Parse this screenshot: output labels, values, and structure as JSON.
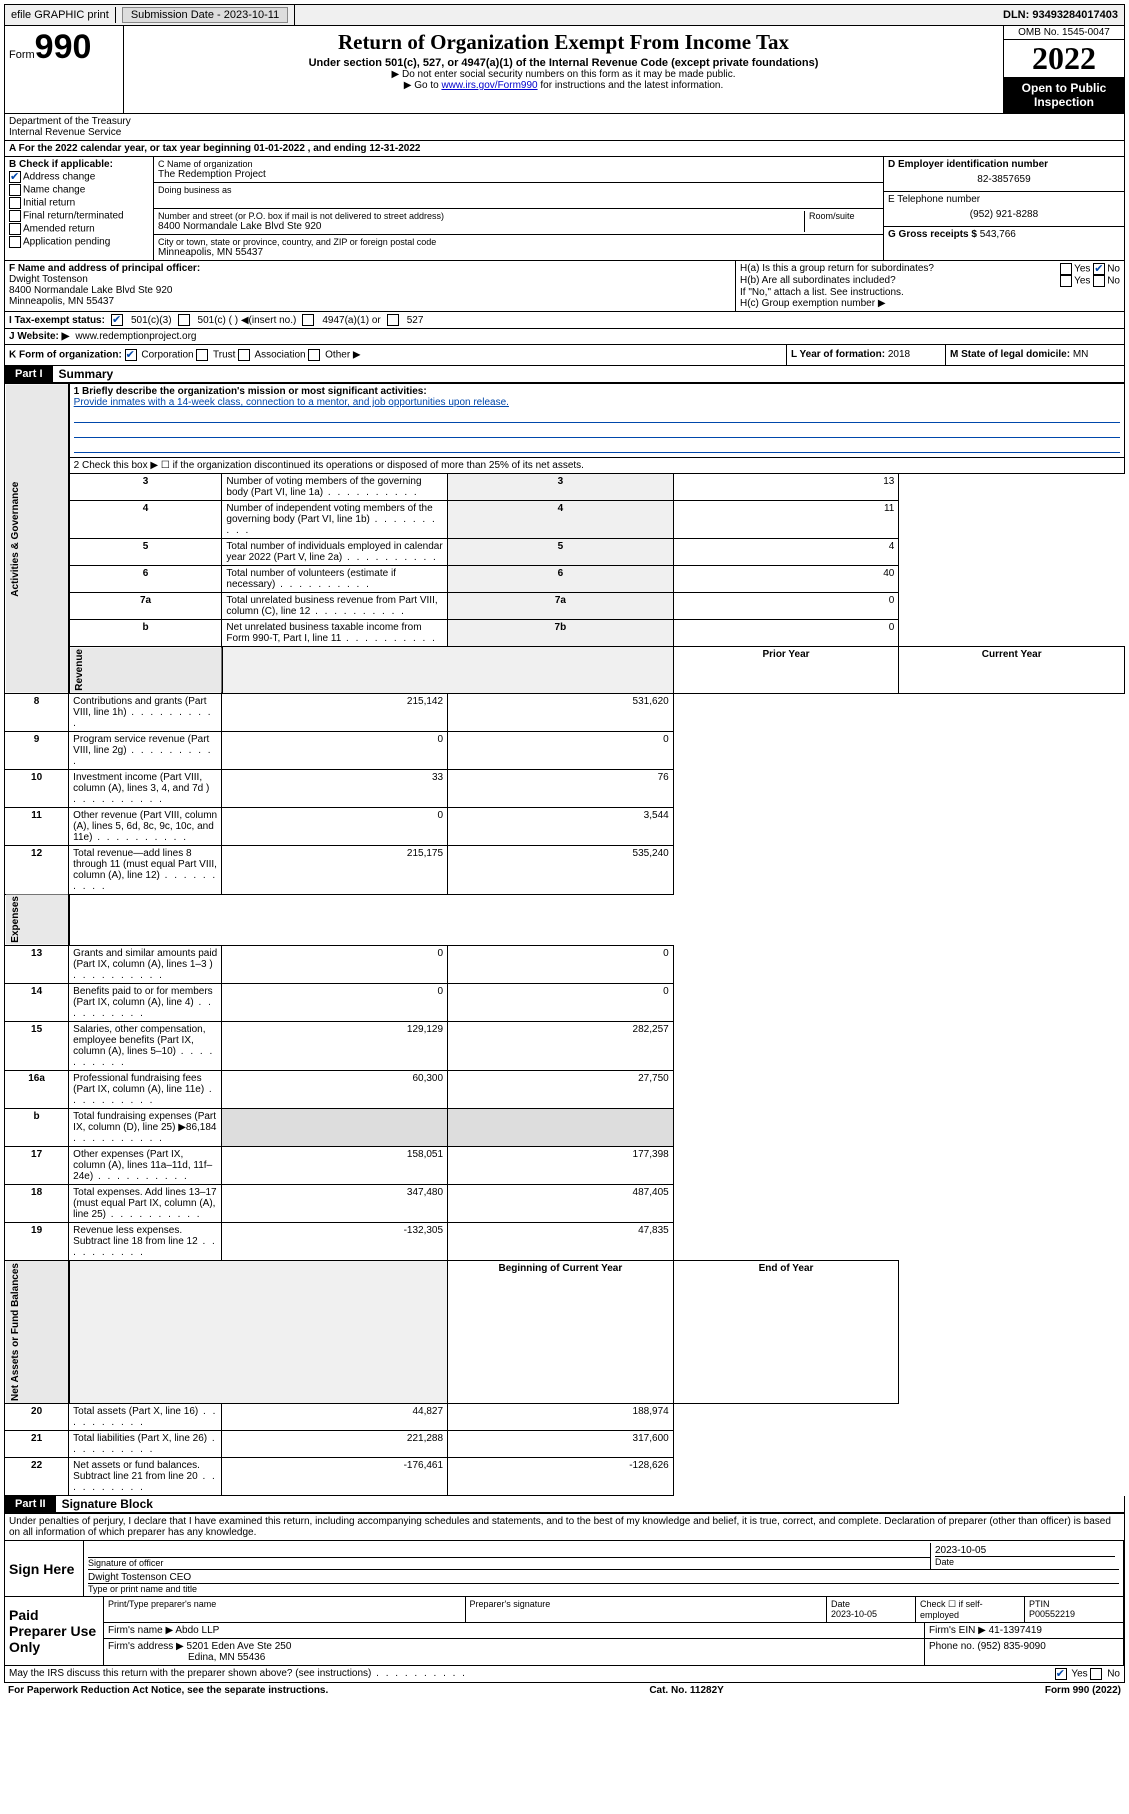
{
  "topbar": {
    "efile": "efile GRAPHIC print",
    "submission_label": "Submission Date - ",
    "submission_date": "2023-10-11",
    "dln_label": "DLN: ",
    "dln": "93493284017403"
  },
  "header": {
    "form_label": "Form",
    "form_number": "990",
    "title": "Return of Organization Exempt From Income Tax",
    "subtitle": "Under section 501(c), 527, or 4947(a)(1) of the Internal Revenue Code (except private foundations)",
    "note1": "▶ Do not enter social security numbers on this form as it may be made public.",
    "note2_pre": "▶ Go to ",
    "note2_link": "www.irs.gov/Form990",
    "note2_post": " for instructions and the latest information.",
    "omb": "OMB No. 1545-0047",
    "year": "2022",
    "inspection": "Open to Public Inspection",
    "dept": "Department of the Treasury\nInternal Revenue Service"
  },
  "section_a": "A For the 2022 calendar year, or tax year beginning 01-01-2022   , and ending 12-31-2022",
  "box_b": {
    "label": "B Check if applicable:",
    "items": [
      "Address change",
      "Name change",
      "Initial return",
      "Final return/terminated",
      "Amended return",
      "Application pending"
    ],
    "checked_index": 0
  },
  "box_c": {
    "name_label": "C Name of organization",
    "name": "The Redemption Project",
    "dba_label": "Doing business as",
    "addr_label": "Number and street (or P.O. box if mail is not delivered to street address)",
    "room_label": "Room/suite",
    "addr": "8400 Normandale Lake Blvd Ste 920",
    "city_label": "City or town, state or province, country, and ZIP or foreign postal code",
    "city": "Minneapolis, MN  55437"
  },
  "box_d": {
    "label": "D Employer identification number",
    "ein": "82-3857659"
  },
  "box_e": {
    "label": "E Telephone number",
    "phone": "(952) 921-8288"
  },
  "box_g": {
    "label": "G Gross receipts $ ",
    "amount": "543,766"
  },
  "box_f": {
    "label": "F  Name and address of principal officer:",
    "name": "Dwight Tostenson",
    "addr1": "8400 Normandale Lake Blvd Ste 920",
    "addr2": "Minneapolis, MN  55437"
  },
  "box_h": {
    "ha": "H(a)  Is this a group return for subordinates?",
    "hb": "H(b)  Are all subordinates included?",
    "hb_note": "If \"No,\" attach a list. See instructions.",
    "hc": "H(c)  Group exemption number ▶",
    "yes": "Yes",
    "no": "No"
  },
  "row_i": {
    "label": "I    Tax-exempt status:",
    "opt1": "501(c)(3)",
    "opt2": "501(c) (  ) ◀(insert no.)",
    "opt3": "4947(a)(1) or",
    "opt4": "527"
  },
  "row_j": {
    "label": "J   Website: ▶ ",
    "site": "www.redemptionproject.org"
  },
  "row_k": {
    "label": "K Form of organization:",
    "opts": [
      "Corporation",
      "Trust",
      "Association",
      "Other ▶"
    ],
    "l_label": "L Year of formation: ",
    "l_val": "2018",
    "m_label": "M State of legal domicile: ",
    "m_val": "MN"
  },
  "part1": {
    "header": "Part I",
    "title": "Summary",
    "line1_label": "1   Briefly describe the organization's mission or most significant activities:",
    "mission": "Provide inmates with a 14-week class, connection to a mentor, and job opportunities upon release.",
    "line2": "2    Check this box ▶ ☐  if the organization discontinued its operations or disposed of more than 25% of its net assets.",
    "sections": {
      "governance": "Activities & Governance",
      "revenue": "Revenue",
      "expenses": "Expenses",
      "netassets": "Net Assets or Fund Balances"
    },
    "gov_rows": [
      {
        "n": "3",
        "text": "Number of voting members of the governing body (Part VI, line 1a)",
        "key": "3",
        "val": "13"
      },
      {
        "n": "4",
        "text": "Number of independent voting members of the governing body (Part VI, line 1b)",
        "key": "4",
        "val": "11"
      },
      {
        "n": "5",
        "text": "Total number of individuals employed in calendar year 2022 (Part V, line 2a)",
        "key": "5",
        "val": "4"
      },
      {
        "n": "6",
        "text": "Total number of volunteers (estimate if necessary)",
        "key": "6",
        "val": "40"
      },
      {
        "n": "7a",
        "text": "Total unrelated business revenue from Part VIII, column (C), line 12",
        "key": "7a",
        "val": "0"
      },
      {
        "n": "b",
        "text": "Net unrelated business taxable income from Form 990-T, Part I, line 11",
        "key": "7b",
        "val": "0"
      }
    ],
    "col_headers": {
      "prior": "Prior Year",
      "current": "Current Year",
      "begin": "Beginning of Current Year",
      "end": "End of Year"
    },
    "rev_rows": [
      {
        "n": "8",
        "text": "Contributions and grants (Part VIII, line 1h)",
        "prior": "215,142",
        "curr": "531,620"
      },
      {
        "n": "9",
        "text": "Program service revenue (Part VIII, line 2g)",
        "prior": "0",
        "curr": "0"
      },
      {
        "n": "10",
        "text": "Investment income (Part VIII, column (A), lines 3, 4, and 7d )",
        "prior": "33",
        "curr": "76"
      },
      {
        "n": "11",
        "text": "Other revenue (Part VIII, column (A), lines 5, 6d, 8c, 9c, 10c, and 11e)",
        "prior": "0",
        "curr": "3,544"
      },
      {
        "n": "12",
        "text": "Total revenue—add lines 8 through 11 (must equal Part VIII, column (A), line 12)",
        "prior": "215,175",
        "curr": "535,240"
      }
    ],
    "exp_rows": [
      {
        "n": "13",
        "text": "Grants and similar amounts paid (Part IX, column (A), lines 1–3 )",
        "prior": "0",
        "curr": "0"
      },
      {
        "n": "14",
        "text": "Benefits paid to or for members (Part IX, column (A), line 4)",
        "prior": "0",
        "curr": "0"
      },
      {
        "n": "15",
        "text": "Salaries, other compensation, employee benefits (Part IX, column (A), lines 5–10)",
        "prior": "129,129",
        "curr": "282,257"
      },
      {
        "n": "16a",
        "text": "Professional fundraising fees (Part IX, column (A), line 11e)",
        "prior": "60,300",
        "curr": "27,750"
      },
      {
        "n": "b",
        "text": "Total fundraising expenses (Part IX, column (D), line 25) ▶86,184",
        "prior": "",
        "curr": ""
      },
      {
        "n": "17",
        "text": "Other expenses (Part IX, column (A), lines 11a–11d, 11f–24e)",
        "prior": "158,051",
        "curr": "177,398"
      },
      {
        "n": "18",
        "text": "Total expenses. Add lines 13–17 (must equal Part IX, column (A), line 25)",
        "prior": "347,480",
        "curr": "487,405"
      },
      {
        "n": "19",
        "text": "Revenue less expenses. Subtract line 18 from line 12",
        "prior": "-132,305",
        "curr": "47,835"
      }
    ],
    "net_rows": [
      {
        "n": "20",
        "text": "Total assets (Part X, line 16)",
        "prior": "44,827",
        "curr": "188,974"
      },
      {
        "n": "21",
        "text": "Total liabilities (Part X, line 26)",
        "prior": "221,288",
        "curr": "317,600"
      },
      {
        "n": "22",
        "text": "Net assets or fund balances. Subtract line 21 from line 20",
        "prior": "-176,461",
        "curr": "-128,626"
      }
    ]
  },
  "part2": {
    "header": "Part II",
    "title": "Signature Block",
    "declaration": "Under penalties of perjury, I declare that I have examined this return, including accompanying schedules and statements, and to the best of my knowledge and belief, it is true, correct, and complete. Declaration of preparer (other than officer) is based on all information of which preparer has any knowledge.",
    "sign_here": "Sign Here",
    "sig_officer": "Signature of officer",
    "sig_date": "Date",
    "sig_date_val": "2023-10-05",
    "officer_name": "Dwight Tostenson CEO",
    "type_name": "Type or print name and title",
    "paid": "Paid Preparer Use Only",
    "prep_name_label": "Print/Type preparer's name",
    "prep_sig_label": "Preparer's signature",
    "prep_date_label": "Date",
    "prep_date": "2023-10-05",
    "check_label": "Check ☐ if self-employed",
    "ptin_label": "PTIN",
    "ptin": "P00552219",
    "firm_name_label": "Firm's name    ▶ ",
    "firm_name": "Abdo LLP",
    "firm_ein_label": "Firm's EIN ▶ ",
    "firm_ein": "41-1397419",
    "firm_addr_label": "Firm's address ▶ ",
    "firm_addr1": "5201 Eden Ave Ste 250",
    "firm_addr2": "Edina, MN  55436",
    "firm_phone_label": "Phone no. ",
    "firm_phone": "(952) 835-9090",
    "discuss": "May the IRS discuss this return with the preparer shown above? (see instructions)",
    "yes": "Yes",
    "no": "No"
  },
  "footer": {
    "left": "For Paperwork Reduction Act Notice, see the separate instructions.",
    "mid": "Cat. No. 11282Y",
    "right": "Form 990 (2022)"
  }
}
